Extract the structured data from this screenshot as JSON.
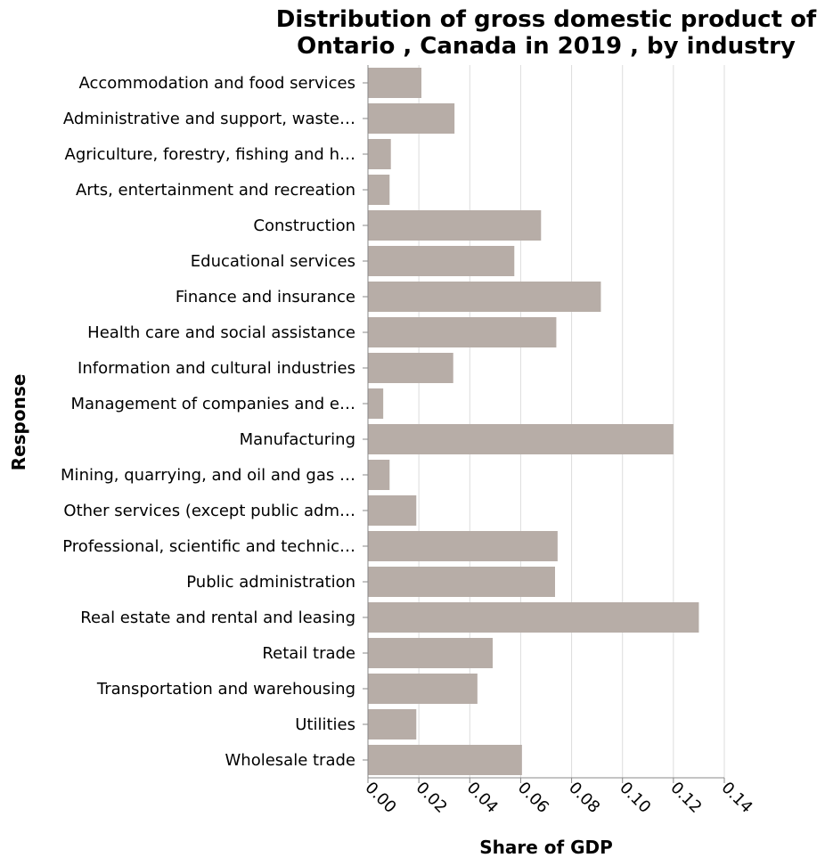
{
  "chart_data": {
    "type": "bar",
    "orientation": "horizontal",
    "title": "Distribution of gross domestic product of Ontario , Canada in 2019 , by industry",
    "title_lines": [
      "Distribution of gross domestic product of",
      "Ontario , Canada in 2019 , by industry"
    ],
    "xlabel": "Share of GDP",
    "ylabel": "Response",
    "xlim": [
      0,
      0.14
    ],
    "xticks": [
      "0.00",
      "0.02",
      "0.04",
      "0.06",
      "0.08",
      "0.10",
      "0.12",
      "0.14"
    ],
    "grid": true,
    "bar_color": "#b7ada7",
    "categories": [
      "Accommodation and food services",
      "Administrative and support, waste…",
      "Agriculture, forestry, fishing and h…",
      "Arts, entertainment and recreation",
      "Construction",
      "Educational services",
      "Finance and insurance",
      "Health care and social assistance",
      "Information and cultural industries",
      "Management of companies and e…",
      "Manufacturing",
      "Mining, quarrying, and oil and gas …",
      "Other services (except public adm…",
      "Professional, scientific and technic…",
      "Public administration",
      "Real estate and rental and leasing",
      "Retail trade",
      "Transportation and warehousing",
      "Utilities",
      "Wholesale trade"
    ],
    "values": [
      0.021,
      0.034,
      0.009,
      0.0085,
      0.068,
      0.0575,
      0.0915,
      0.074,
      0.0335,
      0.006,
      0.12,
      0.0085,
      0.019,
      0.0745,
      0.0735,
      0.13,
      0.049,
      0.043,
      0.019,
      0.0605
    ]
  }
}
